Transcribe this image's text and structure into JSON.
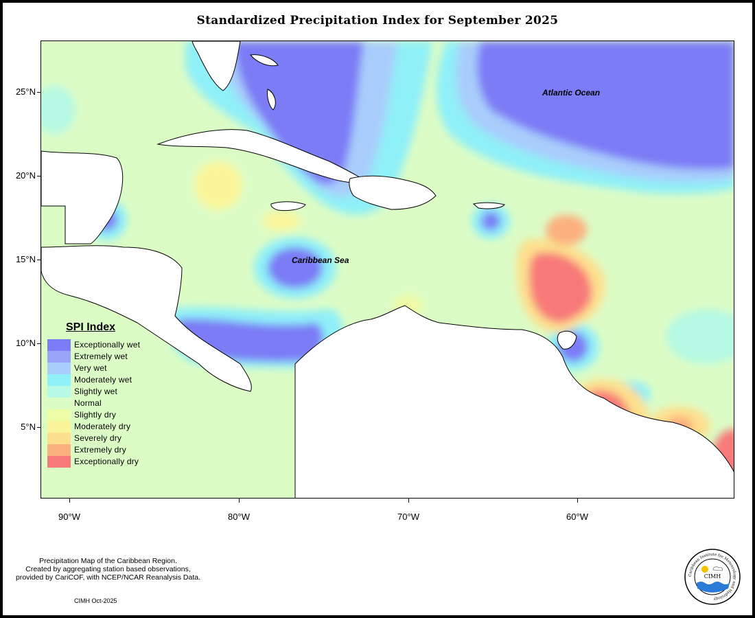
{
  "title": "Standardized Precipitation Index for September 2025",
  "map": {
    "lat_labels": [
      "25°N",
      "20°N",
      "15°N",
      "10°N",
      "5°N"
    ],
    "lon_labels": [
      "90°W",
      "80°W",
      "70°W",
      "60°W"
    ],
    "region_labels": {
      "atlantic": "Atlantic Ocean",
      "caribbean": "Caribbean Sea"
    }
  },
  "legend": {
    "title": "SPI Index",
    "items": [
      {
        "label": "Exceptionally wet",
        "color": "#7b7cf6"
      },
      {
        "label": "Extremely wet",
        "color": "#9aa4f8"
      },
      {
        "label": "Very wet",
        "color": "#a9cdfb"
      },
      {
        "label": "Moderately wet",
        "color": "#8ff0f8"
      },
      {
        "label": "Slightly wet",
        "color": "#b6f9e4"
      },
      {
        "label": "Normal",
        "color": "#dcfcc6"
      },
      {
        "label": "Slightly dry",
        "color": "#eefca6"
      },
      {
        "label": "Moderately dry",
        "color": "#fbf59a"
      },
      {
        "label": "Severely dry",
        "color": "#fde08e"
      },
      {
        "label": "Extremely dry",
        "color": "#fcb07e"
      },
      {
        "label": "Exceptionally dry",
        "color": "#f87979"
      }
    ]
  },
  "credit": {
    "line1": "Precipitation Map of the Caribbean Region.",
    "line2": "Created by aggregating station based observations,",
    "line3": "provided by CariCOF, with NCEP/NCAR Reanalysis Data.",
    "date": "CIMH Oct-2025"
  },
  "logo": {
    "text": "CIMH",
    "ring_text": "Caribbean Institute for Meteorology and Hydrology"
  }
}
